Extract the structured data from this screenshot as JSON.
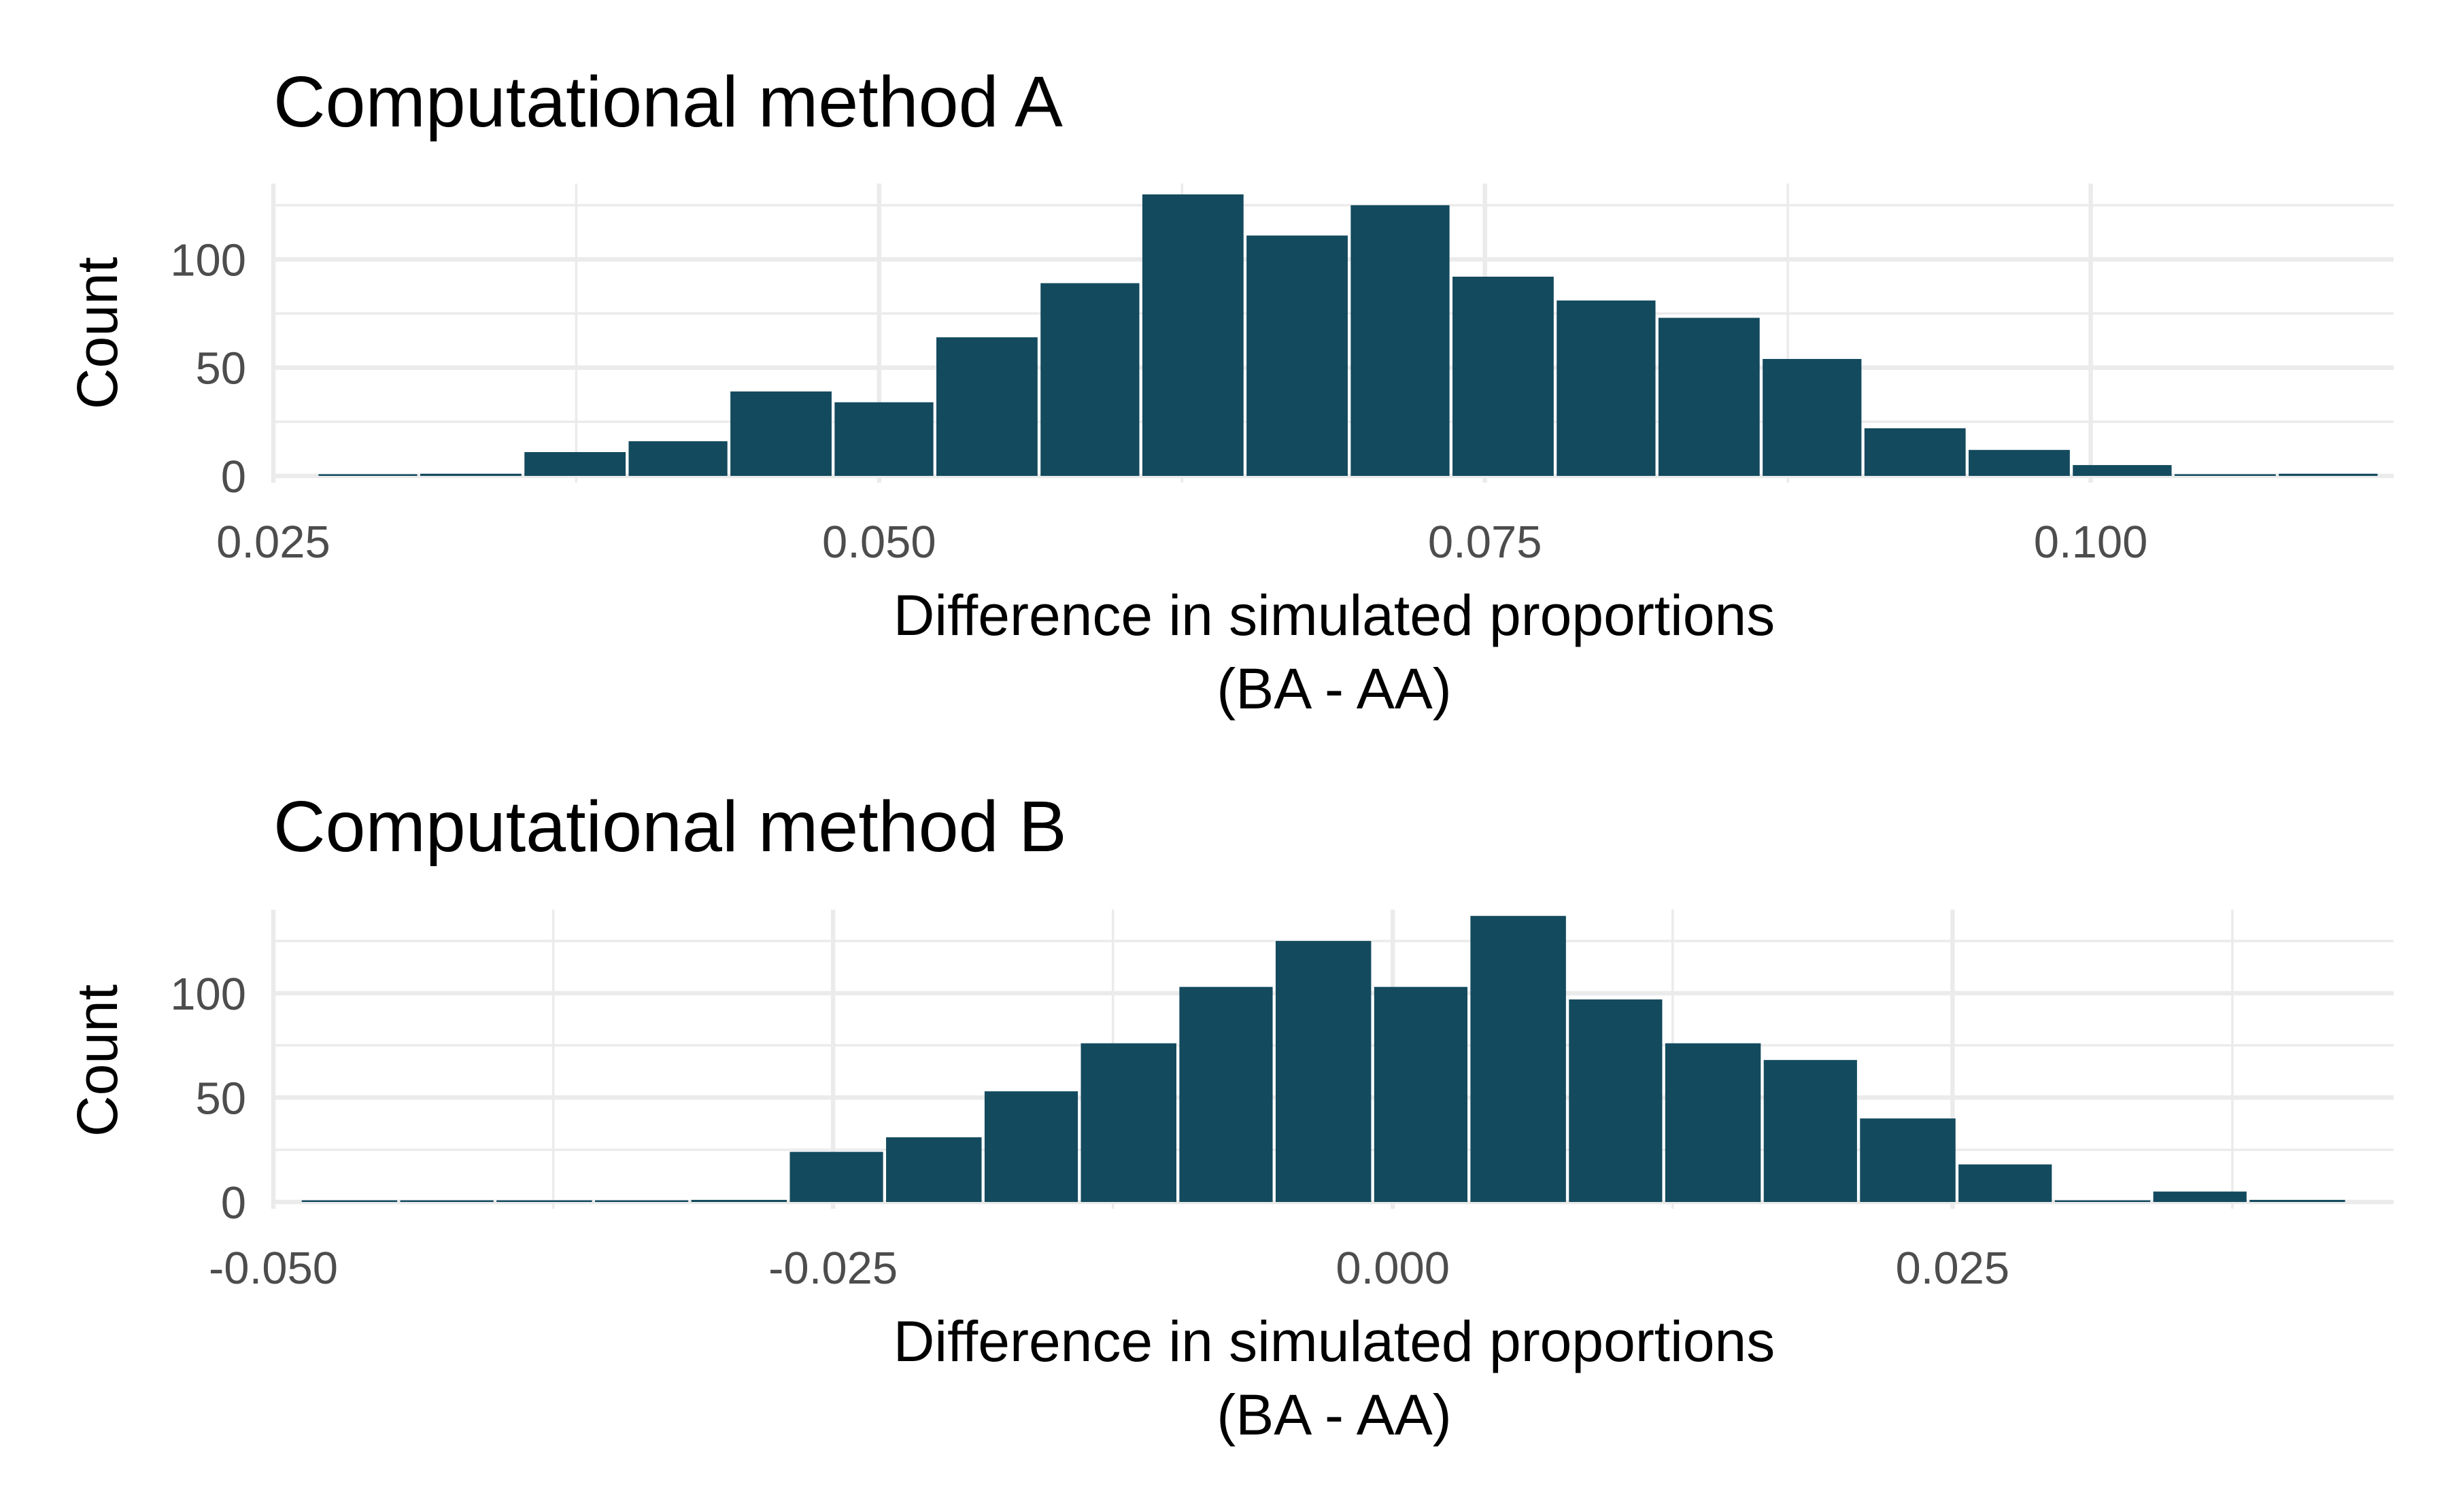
{
  "chart_data": [
    {
      "type": "bar",
      "title": "Computational method A",
      "xlabel": [
        "Difference in simulated proportions",
        "(BA - AA)"
      ],
      "ylabel": "Count",
      "bar_color": "#134a5e",
      "grid": true,
      "xlim": [
        0.025,
        0.1125
      ],
      "ylim": [
        0,
        135
      ],
      "xticks": [
        0.025,
        0.05,
        0.075,
        0.1
      ],
      "xtick_labels": [
        "0.025",
        "0.050",
        "0.075",
        "0.100"
      ],
      "yticks": [
        0,
        50,
        100
      ],
      "ytick_labels": [
        "0",
        "50",
        "100"
      ],
      "bins": [
        {
          "x0": 0.0268,
          "x1": 0.031,
          "count": 0
        },
        {
          "x0": 0.031,
          "x1": 0.0353,
          "count": 1
        },
        {
          "x0": 0.0353,
          "x1": 0.0396,
          "count": 11
        },
        {
          "x0": 0.0396,
          "x1": 0.0438,
          "count": 16
        },
        {
          "x0": 0.0438,
          "x1": 0.0481,
          "count": 39
        },
        {
          "x0": 0.0481,
          "x1": 0.0523,
          "count": 34
        },
        {
          "x0": 0.0523,
          "x1": 0.0566,
          "count": 64
        },
        {
          "x0": 0.0566,
          "x1": 0.0608,
          "count": 89
        },
        {
          "x0": 0.0608,
          "x1": 0.0651,
          "count": 130
        },
        {
          "x0": 0.0651,
          "x1": 0.0694,
          "count": 111
        },
        {
          "x0": 0.0694,
          "x1": 0.0736,
          "count": 125
        },
        {
          "x0": 0.0736,
          "x1": 0.0779,
          "count": 92
        },
        {
          "x0": 0.0779,
          "x1": 0.0821,
          "count": 81
        },
        {
          "x0": 0.0821,
          "x1": 0.0864,
          "count": 73
        },
        {
          "x0": 0.0864,
          "x1": 0.0906,
          "count": 54
        },
        {
          "x0": 0.0906,
          "x1": 0.0949,
          "count": 22
        },
        {
          "x0": 0.0949,
          "x1": 0.0992,
          "count": 12
        },
        {
          "x0": 0.0992,
          "x1": 0.1034,
          "count": 5
        },
        {
          "x0": 0.1034,
          "x1": 0.1077,
          "count": 0
        },
        {
          "x0": 0.1077,
          "x1": 0.1119,
          "count": 1
        }
      ]
    },
    {
      "type": "bar",
      "title": "Computational method B",
      "xlabel": [
        "Difference in simulated proportions",
        "(BA - AA)"
      ],
      "ylabel": "Count",
      "bar_color": "#134a5e",
      "grid": true,
      "xlim": [
        -0.05,
        0.0447
      ],
      "ylim": [
        0,
        140
      ],
      "xticks": [
        -0.05,
        -0.025,
        0.0,
        0.025
      ],
      "xtick_labels": [
        "-0.050",
        "-0.025",
        "0.000",
        "0.025"
      ],
      "yticks": [
        0,
        50,
        100
      ],
      "ytick_labels": [
        "0",
        "50",
        "100"
      ],
      "bins": [
        {
          "x0": -0.0488,
          "x1": -0.0444,
          "count": 0
        },
        {
          "x0": -0.0444,
          "x1": -0.0401,
          "count": 0
        },
        {
          "x0": -0.0401,
          "x1": -0.0357,
          "count": 0
        },
        {
          "x0": -0.0357,
          "x1": -0.0314,
          "count": 0
        },
        {
          "x0": -0.0314,
          "x1": -0.027,
          "count": 1
        },
        {
          "x0": -0.027,
          "x1": -0.0227,
          "count": 24
        },
        {
          "x0": -0.0227,
          "x1": -0.0183,
          "count": 31
        },
        {
          "x0": -0.0183,
          "x1": -0.014,
          "count": 53
        },
        {
          "x0": -0.014,
          "x1": -0.0096,
          "count": 76
        },
        {
          "x0": -0.0096,
          "x1": -0.0053,
          "count": 103
        },
        {
          "x0": -0.0053,
          "x1": -0.0009,
          "count": 125
        },
        {
          "x0": -0.0009,
          "x1": 0.0034,
          "count": 103
        },
        {
          "x0": 0.0034,
          "x1": 0.0078,
          "count": 137
        },
        {
          "x0": 0.0078,
          "x1": 0.0121,
          "count": 97
        },
        {
          "x0": 0.0121,
          "x1": 0.0165,
          "count": 76
        },
        {
          "x0": 0.0165,
          "x1": 0.0208,
          "count": 68
        },
        {
          "x0": 0.0208,
          "x1": 0.0252,
          "count": 40
        },
        {
          "x0": 0.0252,
          "x1": 0.0295,
          "count": 18
        },
        {
          "x0": 0.0295,
          "x1": 0.0339,
          "count": 0
        },
        {
          "x0": 0.0339,
          "x1": 0.0382,
          "count": 5
        },
        {
          "x0": 0.0382,
          "x1": 0.0426,
          "count": 1
        }
      ]
    }
  ]
}
